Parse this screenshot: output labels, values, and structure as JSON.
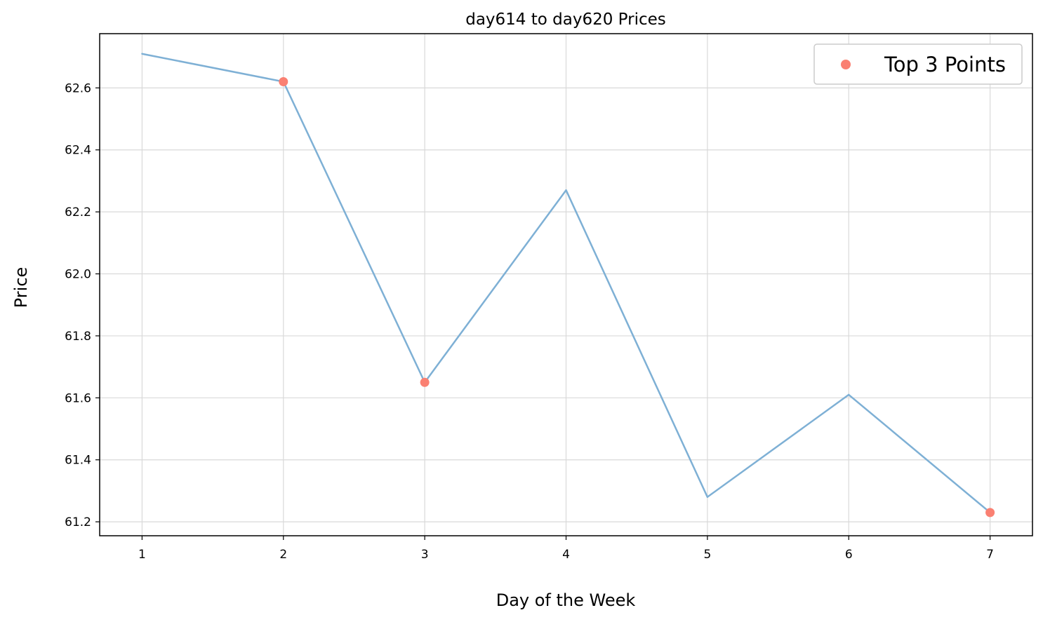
{
  "chart_data": {
    "type": "line",
    "title": "day614 to day620 Prices",
    "xlabel": "Day of the Week",
    "ylabel": "Price",
    "x": [
      1,
      2,
      3,
      4,
      5,
      6,
      7
    ],
    "xticks": [
      "1",
      "2",
      "3",
      "4",
      "5",
      "6",
      "7"
    ],
    "yticks": [
      "61.2",
      "61.4",
      "61.6",
      "61.8",
      "62.0",
      "62.2",
      "62.4",
      "62.6"
    ],
    "xlim": [
      0.7,
      7.3
    ],
    "ylim": [
      61.155,
      62.775
    ],
    "grid": true,
    "legend_position": "top-right",
    "series": [
      {
        "values": [
          62.71,
          62.62,
          61.65,
          62.27,
          61.28,
          61.61,
          61.23
        ],
        "color": "#7eb0d5"
      },
      {
        "name": "Top 3 Points",
        "type": "scatter",
        "x": [
          2,
          3,
          7
        ],
        "values": [
          62.62,
          61.65,
          61.23
        ],
        "color": "#fa8072"
      }
    ]
  }
}
